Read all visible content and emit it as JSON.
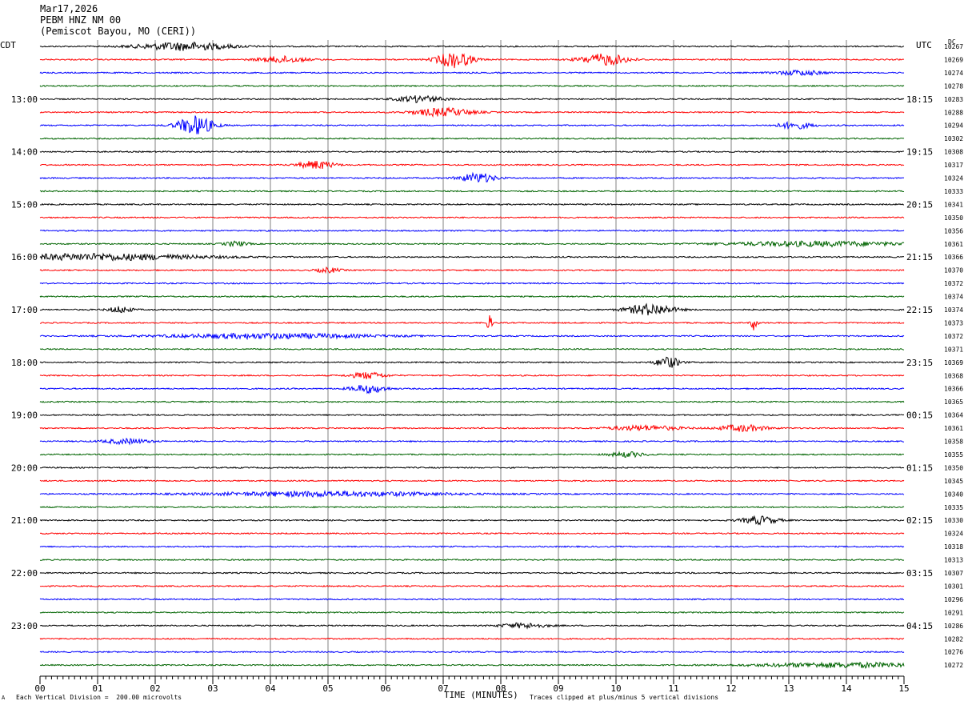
{
  "header": {
    "date": "Mar17,2026",
    "station": "PEBM HNZ NM 00",
    "location": "(Pemiscot Bayou, MO (CERI))"
  },
  "labels": {
    "left_tz": "CDT",
    "right_tz": "UTC",
    "dc": "DC"
  },
  "footer": {
    "scale_mark": "A",
    "scale_note": "Each Vertical Division =  200.00 microvolts",
    "xlabel": "TIME (MINUTES)",
    "clip_note": "Traces clipped at plus/minus 5 vertical divisions"
  },
  "colors": {
    "trace_cycle": [
      "#000000",
      "#ff0000",
      "#0000ff",
      "#006400"
    ],
    "grid": "#808080"
  },
  "chart_data": {
    "type": "line",
    "xlim": [
      0,
      15
    ],
    "x_ticks": [
      "00",
      "01",
      "02",
      "03",
      "04",
      "05",
      "06",
      "07",
      "08",
      "09",
      "10",
      "11",
      "12",
      "13",
      "14",
      "15"
    ],
    "trace_count": 48,
    "left_hour_labels": [
      "13:00",
      "14:00",
      "15:00",
      "16:00",
      "17:00",
      "18:00",
      "19:00",
      "20:00",
      "21:00",
      "22:00",
      "23:00"
    ],
    "right_hour_labels": [
      "18:15",
      "19:15",
      "20:15",
      "21:15",
      "22:15",
      "23:15",
      "00:15",
      "01:15",
      "02:15",
      "03:15",
      "04:15"
    ],
    "dc_offsets": [
      "10267",
      "10269",
      "10274",
      "10278",
      "10283",
      "10288",
      "10294",
      "10302",
      "10308",
      "10317",
      "10324",
      "10333",
      "10341",
      "10350",
      "10356",
      "10361",
      "10366",
      "10370",
      "10372",
      "10374",
      "10374",
      "10373",
      "10372",
      "10371",
      "10369",
      "10368",
      "10366",
      "10365",
      "10364",
      "10361",
      "10358",
      "10355",
      "10350",
      "10345",
      "10340",
      "10335",
      "10330",
      "10324",
      "10318",
      "10313",
      "10307",
      "10301",
      "10296",
      "10291",
      "10286",
      "10282",
      "10276",
      "10272"
    ],
    "events": [
      {
        "trace": 0,
        "minute": 2.5,
        "amp": 5,
        "width": 0.8
      },
      {
        "trace": 1,
        "minute": 4.2,
        "amp": 4,
        "width": 0.4
      },
      {
        "trace": 1,
        "minute": 7.2,
        "amp": 10,
        "width": 0.3
      },
      {
        "trace": 1,
        "minute": 9.8,
        "amp": 7,
        "width": 0.4
      },
      {
        "trace": 2,
        "minute": 13.2,
        "amp": 3,
        "width": 0.4
      },
      {
        "trace": 4,
        "minute": 6.6,
        "amp": 4,
        "width": 0.4
      },
      {
        "trace": 5,
        "minute": 7.0,
        "amp": 5,
        "width": 0.5
      },
      {
        "trace": 6,
        "minute": 2.7,
        "amp": 12,
        "width": 0.3
      },
      {
        "trace": 6,
        "minute": 13.1,
        "amp": 4,
        "width": 0.3
      },
      {
        "trace": 9,
        "minute": 4.8,
        "amp": 5,
        "width": 0.3
      },
      {
        "trace": 10,
        "minute": 7.6,
        "amp": 6,
        "width": 0.3
      },
      {
        "trace": 15,
        "minute": 3.4,
        "amp": 3,
        "width": 0.2
      },
      {
        "trace": 15,
        "minute": 13.5,
        "amp": 3,
        "width": 1.5
      },
      {
        "trace": 16,
        "minute": 1.0,
        "amp": 4,
        "width": 1.8
      },
      {
        "trace": 17,
        "minute": 5.0,
        "amp": 3,
        "width": 0.2
      },
      {
        "trace": 20,
        "minute": 1.4,
        "amp": 4,
        "width": 0.2
      },
      {
        "trace": 20,
        "minute": 10.6,
        "amp": 7,
        "width": 0.4
      },
      {
        "trace": 21,
        "minute": 7.8,
        "amp": 9,
        "width": 0.05
      },
      {
        "trace": 21,
        "minute": 12.4,
        "amp": 10,
        "width": 0.05
      },
      {
        "trace": 22,
        "minute": 4.0,
        "amp": 3,
        "width": 1.8
      },
      {
        "trace": 24,
        "minute": 10.9,
        "amp": 7,
        "width": 0.2
      },
      {
        "trace": 25,
        "minute": 5.7,
        "amp": 4,
        "width": 0.3
      },
      {
        "trace": 26,
        "minute": 5.7,
        "amp": 5,
        "width": 0.3
      },
      {
        "trace": 29,
        "minute": 10.5,
        "amp": 3,
        "width": 0.6
      },
      {
        "trace": 29,
        "minute": 12.2,
        "amp": 4,
        "width": 0.4
      },
      {
        "trace": 30,
        "minute": 1.5,
        "amp": 3,
        "width": 0.4
      },
      {
        "trace": 31,
        "minute": 10.2,
        "amp": 3,
        "width": 0.3
      },
      {
        "trace": 34,
        "minute": 5.0,
        "amp": 3,
        "width": 2.0
      },
      {
        "trace": 36,
        "minute": 12.5,
        "amp": 5,
        "width": 0.3
      },
      {
        "trace": 44,
        "minute": 8.4,
        "amp": 3,
        "width": 0.4
      },
      {
        "trace": 47,
        "minute": 14.0,
        "amp": 3,
        "width": 1.5
      }
    ]
  }
}
